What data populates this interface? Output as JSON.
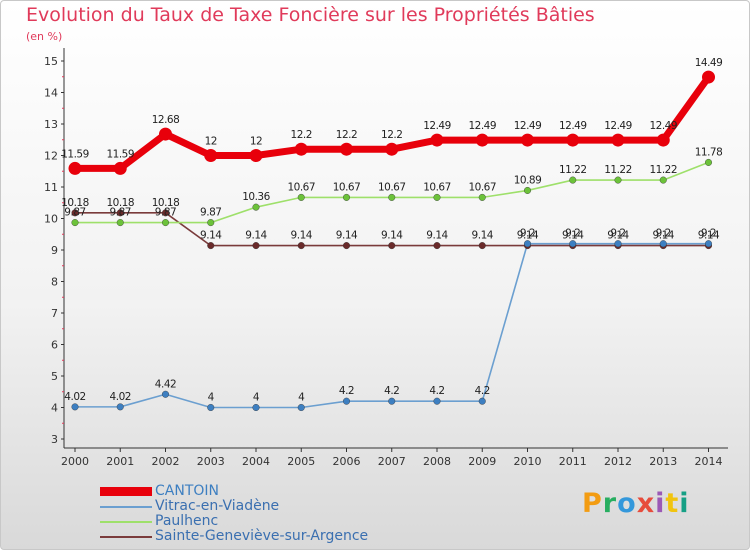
{
  "header": {
    "title": "Evolution du Taux de Taxe Foncière sur les Propriétés Bâties",
    "unit": "(en %)"
  },
  "logo": {
    "text": "Proxiti",
    "colors": [
      "#f39c12",
      "#27ae60",
      "#3498db",
      "#e74c3c",
      "#9b59b6",
      "#f1c40f",
      "#16a085"
    ]
  },
  "chart_data": {
    "type": "line",
    "title": "Evolution du Taux de Taxe Foncière sur les Propriétés Bâties",
    "ylabel": "(en %)",
    "x": [
      "2000",
      "2001",
      "2002",
      "2003",
      "2004",
      "2005",
      "2006",
      "2007",
      "2008",
      "2009",
      "2010",
      "2011",
      "2012",
      "2013",
      "2014"
    ],
    "yticks": [
      "3",
      "4",
      "5",
      "6",
      "7",
      "8",
      "9",
      "10",
      "11",
      "12",
      "13",
      "14",
      "15"
    ],
    "ylim": [
      3,
      15
    ],
    "grid": false,
    "legend_position": "bottom-left",
    "series": [
      {
        "name": "CANTOIN",
        "color": "#e8000b",
        "emphasis": true,
        "values": [
          11.59,
          11.59,
          12.68,
          12,
          12,
          12.2,
          12.2,
          12.2,
          12.49,
          12.49,
          12.49,
          12.49,
          12.49,
          12.49,
          14.49
        ],
        "labels": [
          "11.59",
          "11.59",
          "12.68",
          "12",
          "12",
          "12.2",
          "12.2",
          "12.2",
          "12.49",
          "12.49",
          "12.49",
          "12.49",
          "12.49",
          "12.49",
          "14.49"
        ]
      },
      {
        "name": "Vitrac-en-Viadène",
        "color": "#6b9fd0",
        "point_color": "#3d7fc1",
        "values": [
          4.02,
          4.02,
          4.42,
          4,
          4,
          4,
          4.2,
          4.2,
          4.2,
          4.2,
          9.2,
          9.2,
          9.2,
          9.2,
          9.2
        ],
        "labels": [
          "4.02",
          "4.02",
          "4.42",
          "4",
          "4",
          "4",
          "4.2",
          "4.2",
          "4.2",
          "4.2",
          "9.2",
          "9.2",
          "9.2",
          "9.2",
          "9.2"
        ]
      },
      {
        "name": "Paulhenc",
        "color": "#9ee06a",
        "point_color": "#6cc23a",
        "values": [
          9.87,
          9.87,
          9.87,
          9.87,
          10.36,
          10.67,
          10.67,
          10.67,
          10.67,
          10.67,
          10.89,
          11.22,
          11.22,
          11.22,
          11.78
        ],
        "labels": [
          "9.87",
          "9.87",
          "9.87",
          "9.87",
          "10.36",
          "10.67",
          "10.67",
          "10.67",
          "10.67",
          "10.67",
          "10.89",
          "11.22",
          "11.22",
          "11.22",
          "11.78"
        ]
      },
      {
        "name": "Sainte-Geneviève-sur-Argence",
        "color": "#7a3b3b",
        "point_color": "#6a2a2a",
        "values": [
          10.18,
          10.18,
          10.18,
          9.14,
          9.14,
          9.14,
          9.14,
          9.14,
          9.14,
          9.14,
          9.14,
          9.14,
          9.14,
          9.14,
          9.14
        ],
        "labels": [
          "10.18",
          "10.18",
          "10.18",
          "9.14",
          "9.14",
          "9.14",
          "9.14",
          "9.14",
          "9.14",
          "9.14",
          "9.14",
          "9.14",
          "9.14",
          "9.14",
          "9.14"
        ]
      }
    ]
  }
}
